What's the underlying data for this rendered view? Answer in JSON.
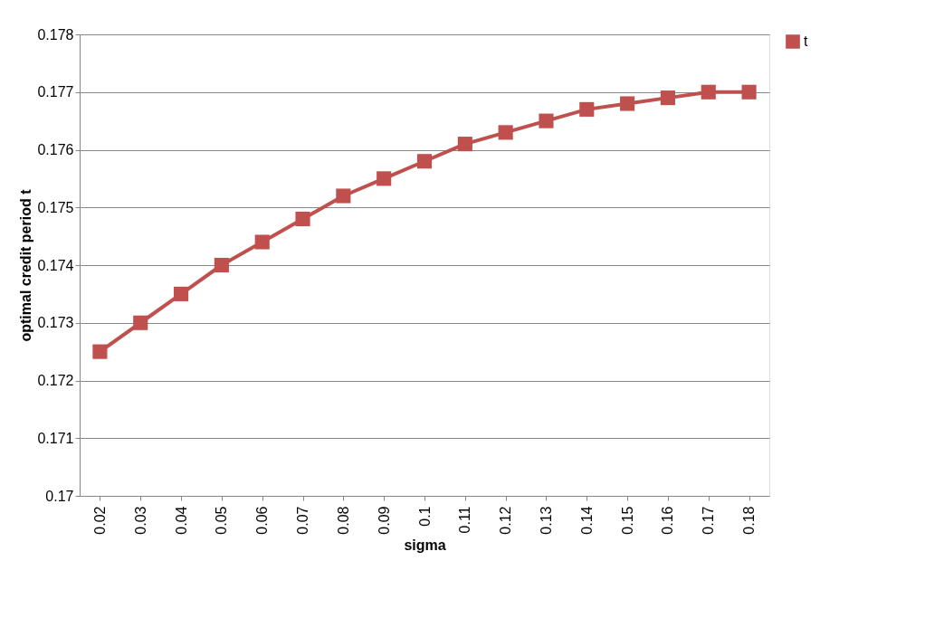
{
  "chart_data": {
    "type": "line",
    "xlabel": "sigma",
    "ylabel": "optimal credit period t",
    "categories": [
      "0.02",
      "0.03",
      "0.04",
      "0.05",
      "0.06",
      "0.07",
      "0.08",
      "0.09",
      "0.1",
      "0.11",
      "0.12",
      "0.13",
      "0.14",
      "0.15",
      "0.16",
      "0.17",
      "0.18"
    ],
    "series": [
      {
        "name": "t",
        "color": "#c0504d",
        "values": [
          0.1725,
          0.173,
          0.1735,
          0.174,
          0.1744,
          0.1748,
          0.1752,
          0.1755,
          0.1758,
          0.1761,
          0.1763,
          0.1765,
          0.1767,
          0.1768,
          0.1769,
          0.177,
          0.177
        ]
      }
    ],
    "ylim": [
      0.17,
      0.178
    ],
    "yticks": [
      0.17,
      0.171,
      0.172,
      0.173,
      0.174,
      0.175,
      0.176,
      0.177,
      0.178
    ],
    "grid": "y",
    "legend": "right",
    "marker": "square",
    "line_style": "solid"
  }
}
